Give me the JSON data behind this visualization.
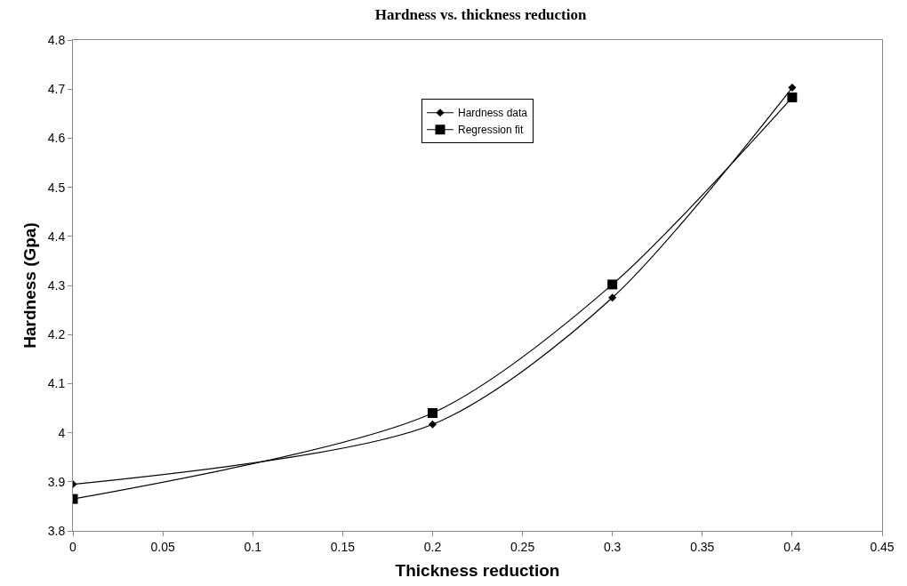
{
  "chart_data": {
    "type": "line",
    "title": "Hardness vs. thickness reduction",
    "xlabel": "Thickness reduction",
    "ylabel": "Hardness (Gpa)",
    "x": [
      0,
      0.2,
      0.3,
      0.4
    ],
    "series": [
      {
        "name": "Hardness data",
        "color": "#000000",
        "marker": "diamond",
        "values": [
          3.895,
          4.017,
          4.275,
          4.703
        ]
      },
      {
        "name": "Regression fit",
        "color": "#000000",
        "marker": "square",
        "values": [
          3.865,
          4.04,
          4.302,
          4.683
        ]
      }
    ],
    "xlim": [
      0,
      0.45
    ],
    "xticks": [
      0,
      0.05,
      0.1,
      0.15,
      0.2,
      0.25,
      0.3,
      0.35,
      0.4,
      0.45
    ],
    "ylim": [
      3.8,
      4.8
    ],
    "yticks": [
      3.8,
      3.9,
      4,
      4.1,
      4.2,
      4.3,
      4.4,
      4.5,
      4.6,
      4.7,
      4.8
    ],
    "grid": false,
    "legend": "top",
    "line_style": "solid"
  }
}
